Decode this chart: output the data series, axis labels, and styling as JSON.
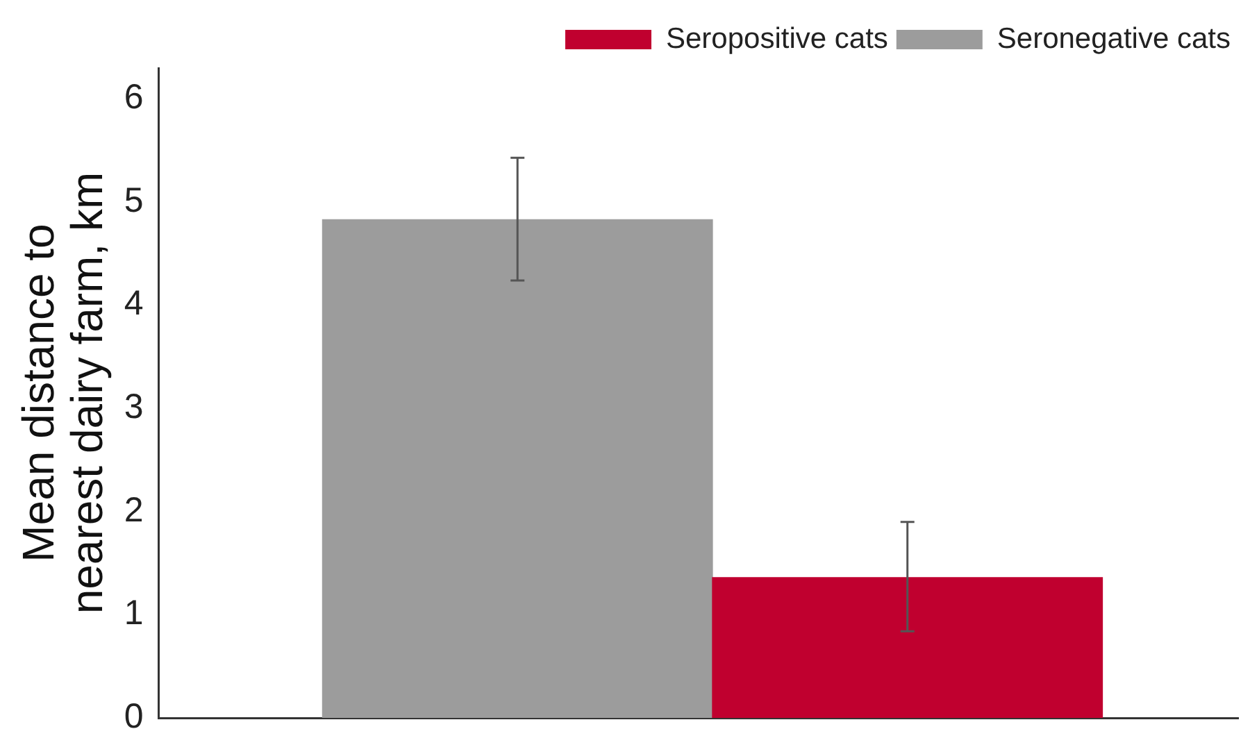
{
  "chart_data": {
    "type": "bar",
    "ylabel": "Mean distance to nearest dairy farm, km",
    "categories": [
      null,
      null
    ],
    "series": [
      {
        "name": "Seropositive cats",
        "color": "#c0002f",
        "values": [
          null,
          1.36
        ],
        "errors": [
          null,
          [
            0.84,
            1.9
          ]
        ]
      },
      {
        "name": "Seronegative cats",
        "color": "#9c9c9c",
        "values": [
          4.83,
          null
        ],
        "errors": [
          [
            4.24,
            5.43
          ],
          null
        ]
      }
    ],
    "ylim": [
      0,
      6.3
    ],
    "yticks": [
      0,
      1,
      2,
      3,
      4,
      5,
      6
    ],
    "grid": false,
    "legend": "top right"
  }
}
